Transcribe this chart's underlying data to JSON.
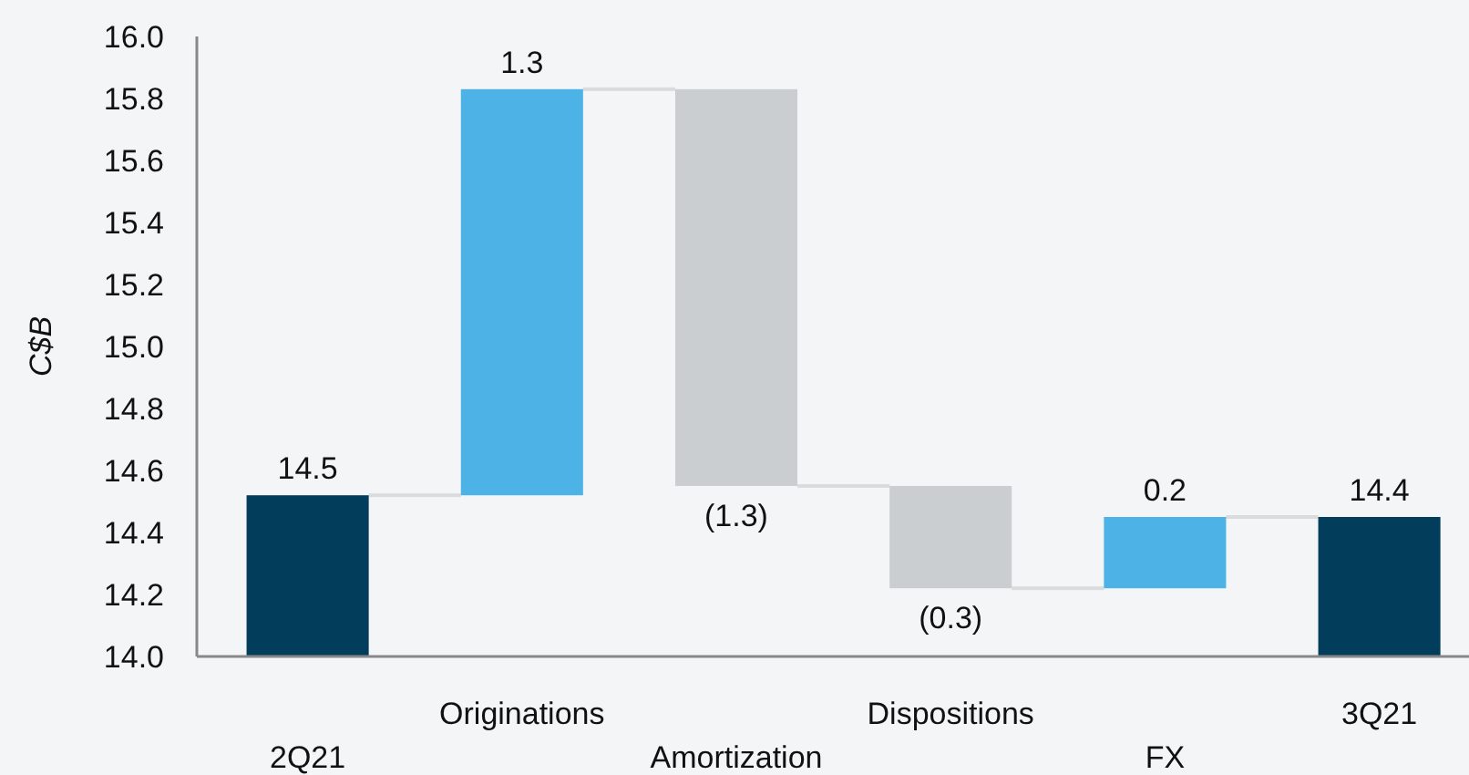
{
  "chart_data": {
    "type": "bar",
    "ylabel": "C$B",
    "categories": [
      "2Q21",
      "Originations",
      "Amortization",
      "Dispositions",
      "FX",
      "3Q21"
    ],
    "values": [
      14.52,
      1.31,
      -1.28,
      -0.33,
      0.23,
      14.45
    ],
    "base": [
      null,
      14.52,
      15.83,
      14.55,
      14.22,
      null
    ],
    "colors": [
      "#023e5c",
      "#4db3e6",
      "#cbced1",
      "#cbced1",
      "#4db3e6",
      "#023e5c"
    ],
    "value_labels": [
      "14.5",
      "1.3",
      "(1.3)",
      "(0.3)",
      "0.2",
      "14.4"
    ],
    "ylim": [
      14.0,
      16.0
    ],
    "yticks": [
      {
        "value": 14.0,
        "label": "14.0"
      },
      {
        "value": 14.2,
        "label": "14.2"
      },
      {
        "value": 14.4,
        "label": "14.4"
      },
      {
        "value": 14.6,
        "label": "14.6"
      },
      {
        "value": 14.8,
        "label": "14.8"
      },
      {
        "value": 15.0,
        "label": "15.0"
      },
      {
        "value": 15.2,
        "label": "15.2"
      },
      {
        "value": 15.4,
        "label": "15.4"
      },
      {
        "value": 15.6,
        "label": "15.6"
      },
      {
        "value": 15.8,
        "label": "15.8"
      },
      {
        "value": 16.0,
        "label": "16.0"
      }
    ],
    "grid": false
  }
}
